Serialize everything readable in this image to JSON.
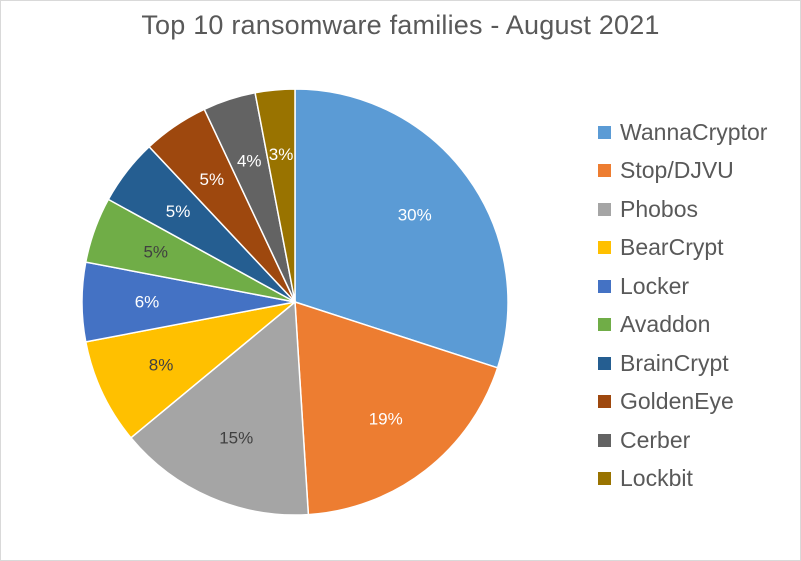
{
  "chart_data": {
    "type": "pie",
    "title": "Top 10 ransomware families - August 2021",
    "legend_position": "right",
    "slices": [
      {
        "label": "WannaCryptor",
        "value": 30,
        "display": "30%",
        "color": "#5b9bd5",
        "text_color": "#ffffff"
      },
      {
        "label": "Stop/DJVU",
        "value": 19,
        "display": "19%",
        "color": "#ed7d31",
        "text_color": "#ffffff"
      },
      {
        "label": "Phobos",
        "value": 15,
        "display": "15%",
        "color": "#a5a5a5",
        "text_color": "#404040"
      },
      {
        "label": "BearCrypt",
        "value": 8,
        "display": "8%",
        "color": "#ffc000",
        "text_color": "#404040"
      },
      {
        "label": "Locker",
        "value": 6,
        "display": "6%",
        "color": "#4472c4",
        "text_color": "#ffffff"
      },
      {
        "label": "Avaddon",
        "value": 5,
        "display": "5%",
        "color": "#70ad47",
        "text_color": "#404040"
      },
      {
        "label": "BrainCrypt",
        "value": 5,
        "display": "5%",
        "color": "#255e91",
        "text_color": "#ffffff"
      },
      {
        "label": "GoldenEye",
        "value": 5,
        "display": "5%",
        "color": "#9e480e",
        "text_color": "#ffffff"
      },
      {
        "label": "Cerber",
        "value": 4,
        "display": "4%",
        "color": "#636363",
        "text_color": "#ffffff"
      },
      {
        "label": "Lockbit",
        "value": 3,
        "display": "3%",
        "color": "#997300",
        "text_color": "#ffffff"
      }
    ]
  }
}
